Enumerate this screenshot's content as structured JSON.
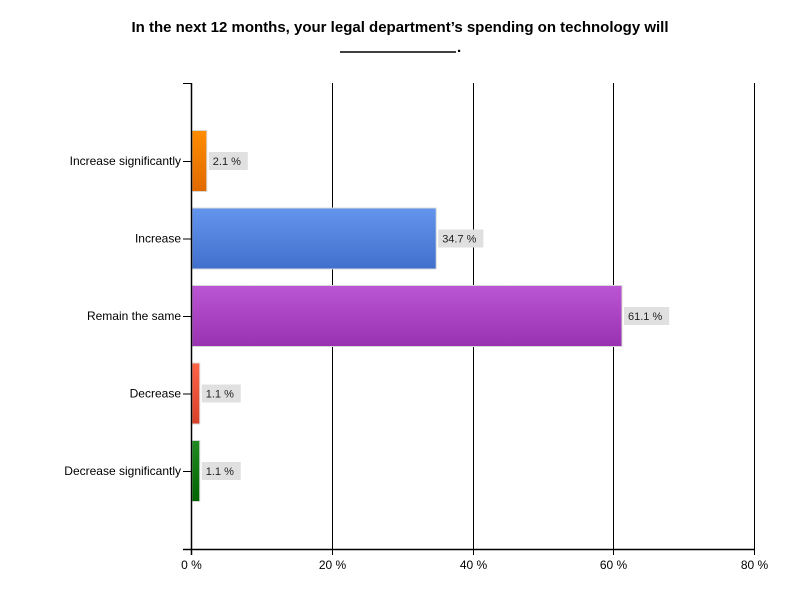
{
  "chart_data": {
    "type": "bar",
    "orientation": "horizontal",
    "title_line1": "In the next 12 months, your legal department’s spending on technology will",
    "title_line2": "____________.",
    "xlabel": "",
    "ylabel": "",
    "xlim": [
      0,
      80
    ],
    "x_ticks": [
      0,
      20,
      40,
      60,
      80
    ],
    "x_tick_labels": [
      "0 %",
      "20 %",
      "40 %",
      "60 %",
      "80 %"
    ],
    "grid": true,
    "categories": [
      "Increase significantly",
      "Increase",
      "Remain the same",
      "Decrease",
      "Decrease significantly"
    ],
    "values": [
      2.1,
      34.7,
      61.1,
      1.1,
      1.1
    ],
    "value_labels": [
      "2.1 %",
      "34.7 %",
      "61.1 %",
      "1.1 %",
      "1.1 %"
    ],
    "colors": [
      {
        "top": "#ff8c00",
        "bottom": "#e06a00"
      },
      {
        "top": "#6495ed",
        "bottom": "#4070cc"
      },
      {
        "top": "#ba55d3",
        "bottom": "#9932b0"
      },
      {
        "top": "#ff6347",
        "bottom": "#d84028"
      },
      {
        "top": "#228b22",
        "bottom": "#006400"
      }
    ]
  }
}
